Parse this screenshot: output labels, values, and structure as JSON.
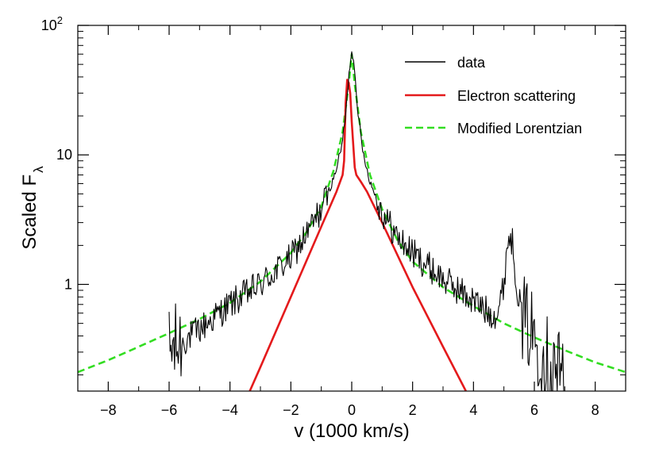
{
  "chart_data": {
    "type": "line",
    "title": "",
    "xlabel": "v (1000 km/s)",
    "ylabel_main": "Scaled F",
    "ylabel_sub": "λ",
    "xlim": [
      -9,
      9
    ],
    "ylim": [
      0.15,
      100
    ],
    "yscale": "log",
    "x_ticks": [
      {
        "value": -8,
        "label": "−8"
      },
      {
        "value": -6,
        "label": "−6"
      },
      {
        "value": -4,
        "label": "−4"
      },
      {
        "value": -2,
        "label": "−2"
      },
      {
        "value": 0,
        "label": "0"
      },
      {
        "value": 2,
        "label": "2"
      },
      {
        "value": 4,
        "label": "4"
      },
      {
        "value": 6,
        "label": "6"
      },
      {
        "value": 8,
        "label": "8"
      }
    ],
    "y_ticks": [
      {
        "value": 1,
        "label": "1"
      },
      {
        "value": 10,
        "label": "10"
      },
      {
        "value": 100,
        "base": "10",
        "exp": "2"
      }
    ],
    "legend_position": "top-right",
    "series": [
      {
        "name": "data",
        "color": "#000000",
        "style": "solid",
        "x": [
          -6.0,
          -5.0,
          -4.0,
          -3.0,
          -2.0,
          -1.5,
          -1.0,
          -0.6,
          -0.35,
          -0.2,
          -0.1,
          0.0,
          0.1,
          0.2,
          0.35,
          0.6,
          1.0,
          1.5,
          2.0,
          3.0,
          4.0,
          4.5,
          4.8,
          5.0,
          5.1,
          5.2,
          5.3,
          5.4,
          5.6,
          6.0,
          6.5,
          7.0
        ],
        "y": [
          0.3,
          0.45,
          0.7,
          1.0,
          1.6,
          2.4,
          3.8,
          6.5,
          11,
          20,
          40,
          65,
          45,
          22,
          11,
          6.2,
          3.6,
          2.3,
          1.75,
          1.1,
          0.75,
          0.6,
          0.6,
          1.0,
          2.0,
          2.4,
          2.0,
          1.1,
          0.55,
          0.4,
          0.25,
          0.2
        ]
      },
      {
        "name": "Electron scattering",
        "color": "#e41a1c",
        "style": "solid",
        "x": [
          -3.35,
          -3.0,
          -2.0,
          -1.0,
          -0.5,
          -0.3,
          -0.25,
          -0.2,
          -0.15,
          -0.1,
          -0.05,
          0.0,
          0.05,
          0.1,
          0.15,
          0.3,
          0.5,
          1.0,
          2.0,
          3.0,
          3.75
        ],
        "y": [
          0.15,
          0.23,
          0.8,
          2.8,
          5.2,
          7.0,
          9.0,
          25,
          38,
          36,
          30,
          18,
          12,
          8,
          7.0,
          6.2,
          5.2,
          3.0,
          0.95,
          0.33,
          0.15
        ]
      },
      {
        "name": "Modified Lorentzian",
        "color": "#33dd22",
        "style": "dashed",
        "x": [
          -9.0,
          -8.0,
          -7.0,
          -6.0,
          -5.0,
          -4.0,
          -3.0,
          -2.0,
          -1.5,
          -1.0,
          -0.6,
          -0.3,
          -0.1,
          0.0,
          0.1,
          0.3,
          0.6,
          1.0,
          1.5,
          2.0,
          3.0,
          4.0,
          5.0,
          6.0,
          7.0,
          8.0,
          9.0
        ],
        "y": [
          0.21,
          0.26,
          0.33,
          0.42,
          0.54,
          0.72,
          1.05,
          1.75,
          2.5,
          4.0,
          7.5,
          15,
          35,
          60,
          35,
          15,
          7.0,
          3.8,
          2.2,
          1.5,
          0.95,
          0.68,
          0.5,
          0.39,
          0.31,
          0.25,
          0.21
        ]
      }
    ]
  }
}
